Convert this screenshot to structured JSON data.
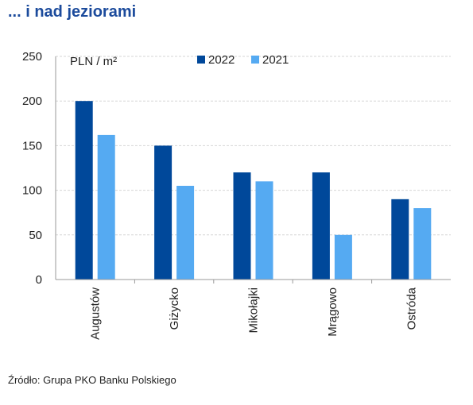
{
  "header": {
    "title": "... i nad jeziorami"
  },
  "footer": {
    "source": "Źródło: Grupa PKO Banku Polskiego"
  },
  "chart_data": {
    "type": "bar",
    "unit_label": "PLN / m²",
    "categories": [
      "Augustów",
      "Giżycko",
      "Mikołajki",
      "Mrągowo",
      "Ostróda"
    ],
    "series": [
      {
        "name": "2022",
        "color": "#00489a",
        "values": [
          200,
          150,
          120,
          120,
          90
        ]
      },
      {
        "name": "2021",
        "color": "#55aaf2",
        "values": [
          162,
          105,
          110,
          50,
          80
        ]
      }
    ],
    "ylim": [
      0,
      250
    ],
    "yticks": [
      0,
      50,
      100,
      150,
      200,
      250
    ],
    "grid": true,
    "legend": "top-center"
  }
}
